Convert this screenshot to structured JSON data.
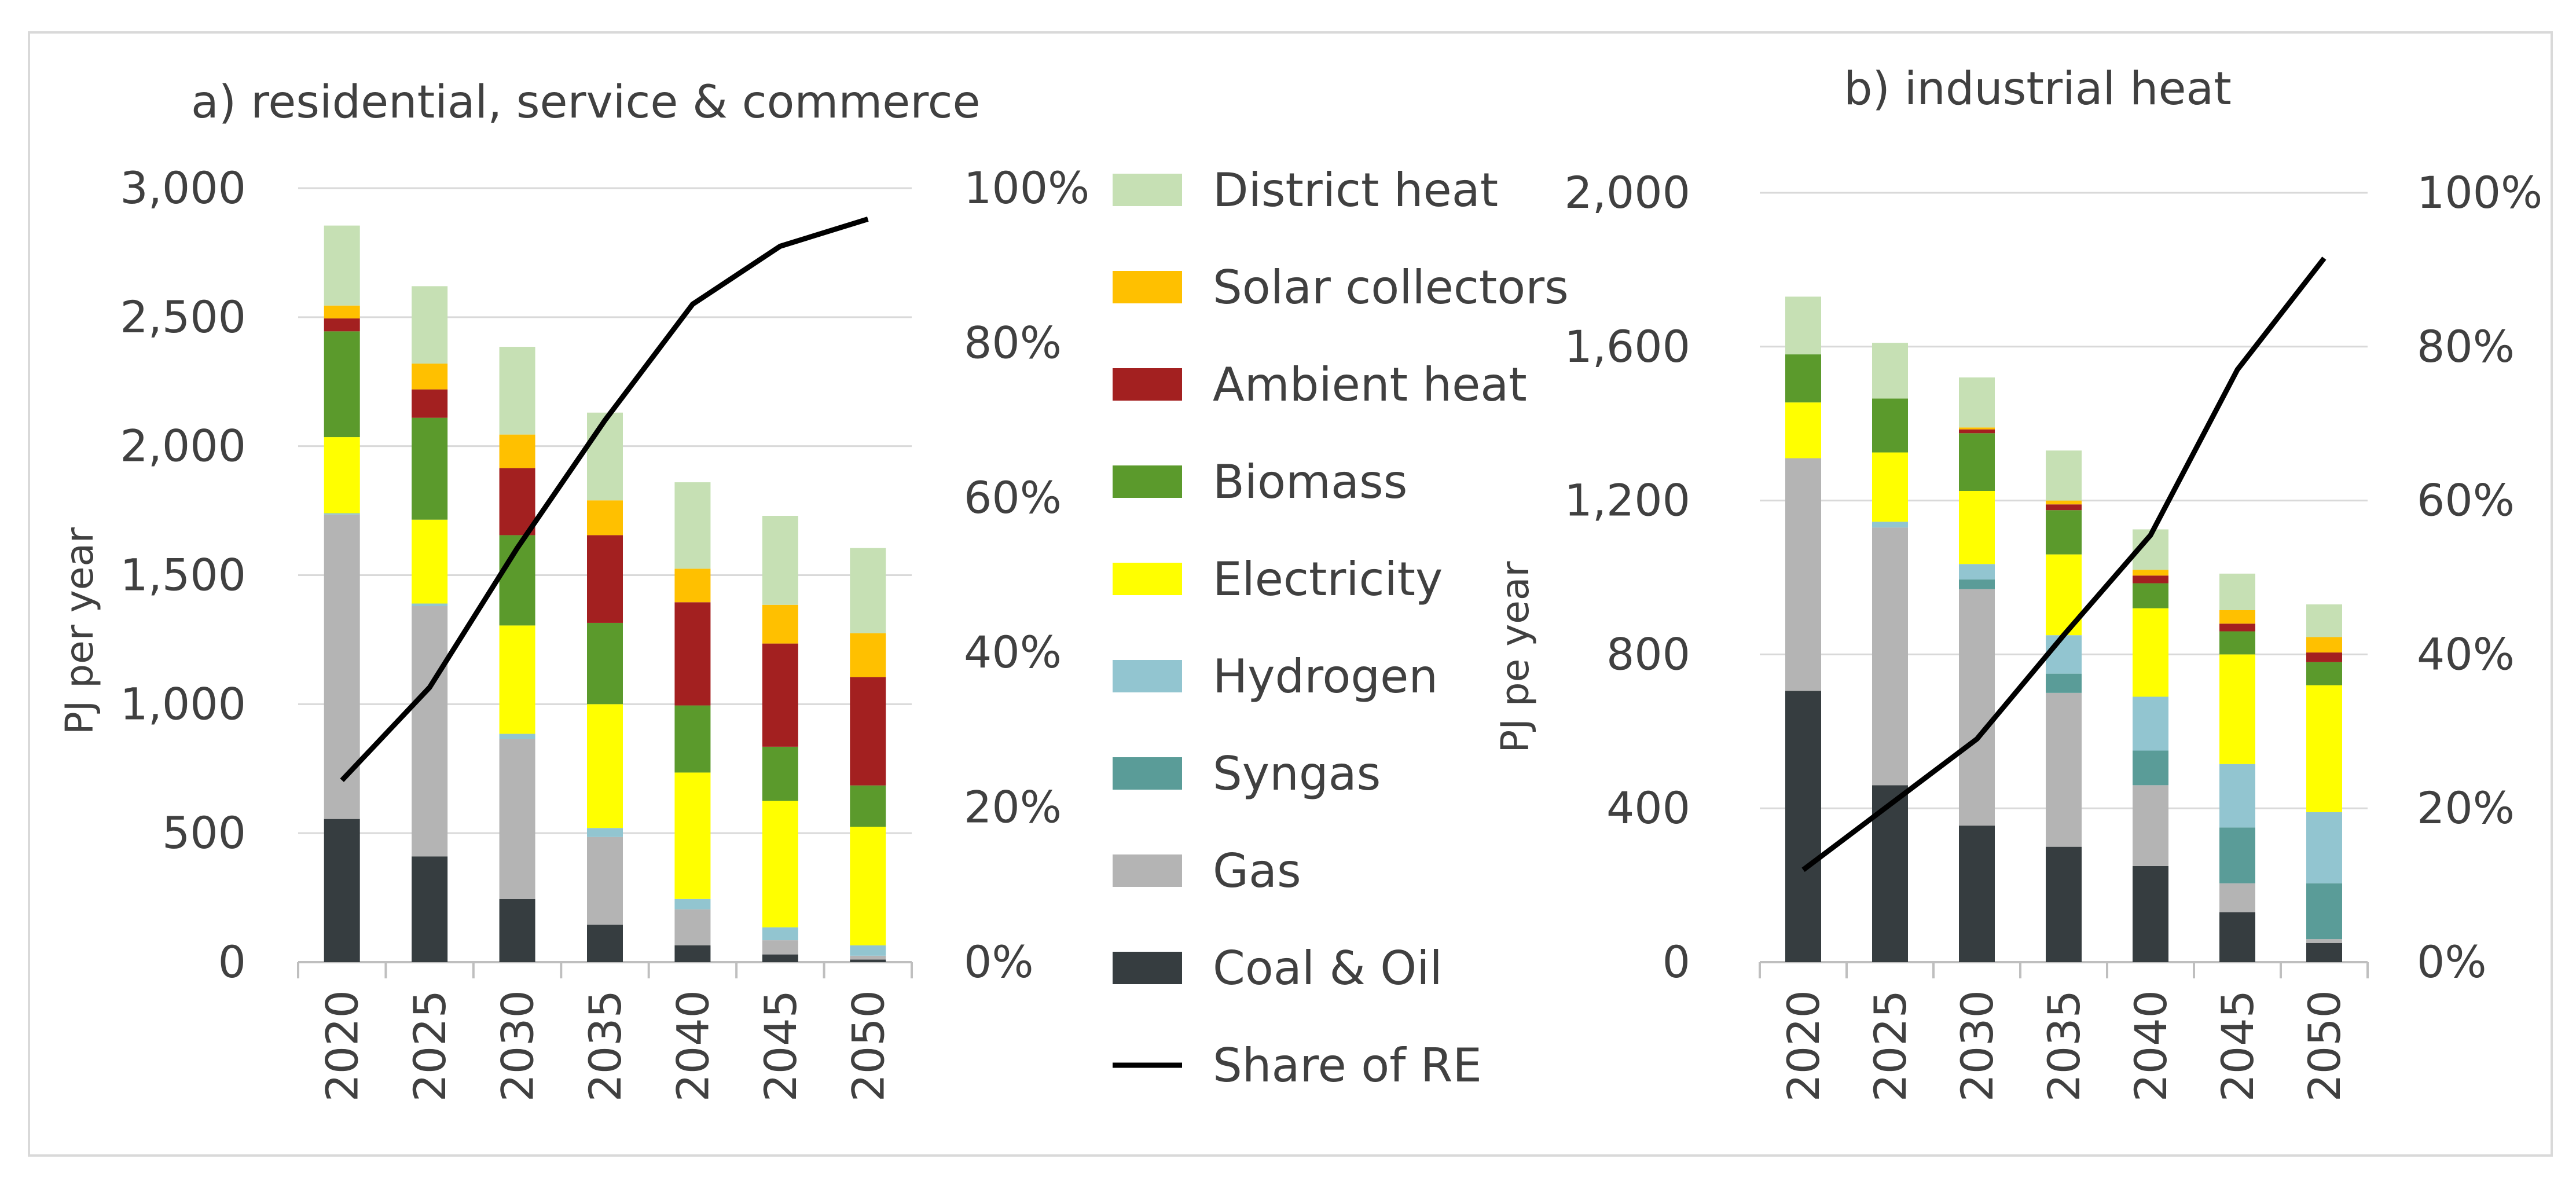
{
  "legend": {
    "items": [
      {
        "key": "district",
        "label": "District heat",
        "color": "#c6e0b4",
        "type": "bar"
      },
      {
        "key": "solar",
        "label": "Solar collectors",
        "color": "#ffc000",
        "type": "bar"
      },
      {
        "key": "ambient",
        "label": "Ambient heat",
        "color": "#a32020",
        "type": "bar"
      },
      {
        "key": "biomass",
        "label": "Biomass",
        "color": "#5b9a2c",
        "type": "bar"
      },
      {
        "key": "electricity",
        "label": "Electricity",
        "color": "#ffff00",
        "type": "bar"
      },
      {
        "key": "hydrogen",
        "label": "Hydrogen",
        "color": "#92c5d0",
        "type": "bar"
      },
      {
        "key": "syngas",
        "label": "Syngas",
        "color": "#5a9c98",
        "type": "bar"
      },
      {
        "key": "gas",
        "label": "Gas",
        "color": "#b4b4b4",
        "type": "bar"
      },
      {
        "key": "coaloil",
        "label": "Coal & Oil",
        "color": "#363d40",
        "type": "bar"
      },
      {
        "key": "share",
        "label": "Share of RE",
        "color": "#000000",
        "type": "line"
      }
    ]
  },
  "chart_data": [
    {
      "type": "bar",
      "stacked": true,
      "title": "a) residential, service & commerce",
      "ylabel": "PJ per year",
      "ylim": [
        0,
        3000
      ],
      "yticks": [
        "0",
        "500",
        "1,000",
        "1,500",
        "2,000",
        "2,500",
        "3,000"
      ],
      "y2lim": [
        0,
        1
      ],
      "y2ticks": [
        "0%",
        "20%",
        "40%",
        "60%",
        "80%",
        "100%"
      ],
      "categories": [
        "2020",
        "2025",
        "2030",
        "2035",
        "2040",
        "2045",
        "2050"
      ],
      "series": [
        {
          "key": "coaloil",
          "name": "Coal & Oil",
          "values": [
            555,
            410,
            245,
            145,
            65,
            30,
            10
          ]
        },
        {
          "key": "gas",
          "name": "Gas",
          "values": [
            1180,
            970,
            620,
            340,
            140,
            55,
            15
          ]
        },
        {
          "key": "syngas",
          "name": "Syngas",
          "values": [
            0,
            0,
            0,
            0,
            0,
            0,
            0
          ]
        },
        {
          "key": "hydrogen",
          "name": "Hydrogen",
          "values": [
            5,
            10,
            20,
            35,
            40,
            50,
            40
          ]
        },
        {
          "key": "electricity",
          "name": "Electricity",
          "values": [
            295,
            325,
            420,
            480,
            490,
            490,
            460
          ]
        },
        {
          "key": "biomass",
          "name": "Biomass",
          "values": [
            410,
            395,
            350,
            315,
            260,
            210,
            160
          ]
        },
        {
          "key": "ambient",
          "name": "Ambient heat",
          "values": [
            50,
            110,
            260,
            340,
            400,
            400,
            420
          ]
        },
        {
          "key": "solar",
          "name": "Solar collectors",
          "values": [
            50,
            100,
            130,
            135,
            130,
            150,
            170
          ]
        },
        {
          "key": "district",
          "name": "District heat",
          "values": [
            310,
            300,
            340,
            340,
            335,
            345,
            330
          ]
        }
      ],
      "line": {
        "key": "share",
        "name": "Share of RE",
        "values": [
          0.235,
          0.355,
          0.535,
          0.7,
          0.85,
          0.925,
          0.96
        ]
      }
    },
    {
      "type": "bar",
      "stacked": true,
      "title": "b) industrial heat",
      "ylabel": "PJ pe year",
      "ylim": [
        0,
        2000
      ],
      "yticks": [
        "0",
        "400",
        "800",
        "1,200",
        "1,600",
        "2,000"
      ],
      "y2lim": [
        0,
        1
      ],
      "y2ticks": [
        "0%",
        "20%",
        "40%",
        "60%",
        "80%",
        "100%"
      ],
      "categories": [
        "2020",
        "2025",
        "2030",
        "2035",
        "2040",
        "2045",
        "2050"
      ],
      "series": [
        {
          "key": "coaloil",
          "name": "Coal & Oil",
          "values": [
            705,
            460,
            355,
            300,
            250,
            130,
            50
          ]
        },
        {
          "key": "gas",
          "name": "Gas",
          "values": [
            605,
            670,
            615,
            400,
            210,
            75,
            10
          ]
        },
        {
          "key": "syngas",
          "name": "Syngas",
          "values": [
            0,
            0,
            25,
            50,
            90,
            145,
            145
          ]
        },
        {
          "key": "hydrogen",
          "name": "Hydrogen",
          "values": [
            0,
            15,
            40,
            100,
            140,
            165,
            185
          ]
        },
        {
          "key": "electricity",
          "name": "Electricity",
          "values": [
            145,
            180,
            190,
            210,
            230,
            285,
            330
          ]
        },
        {
          "key": "biomass",
          "name": "Biomass",
          "values": [
            125,
            140,
            150,
            115,
            65,
            60,
            60
          ]
        },
        {
          "key": "ambient",
          "name": "Ambient heat",
          "values": [
            0,
            0,
            10,
            15,
            20,
            20,
            25
          ]
        },
        {
          "key": "solar",
          "name": "Solar collectors",
          "values": [
            0,
            0,
            5,
            10,
            15,
            35,
            40
          ]
        },
        {
          "key": "district",
          "name": "District heat",
          "values": [
            150,
            145,
            130,
            130,
            105,
            95,
            85
          ]
        }
      ],
      "line": {
        "key": "share",
        "name": "Share of RE",
        "values": [
          0.12,
          0.205,
          0.29,
          0.425,
          0.555,
          0.77,
          0.915
        ]
      }
    }
  ]
}
